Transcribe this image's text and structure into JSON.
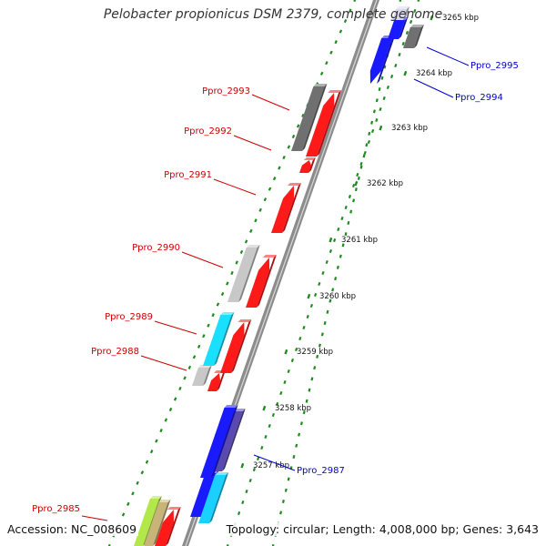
{
  "title": "Pelobacter propionicus DSM 2379, complete genome",
  "footer": {
    "accession": "Accession: NC_008609",
    "summary": "Topology: circular; Length: 4,008,000 bp; Genes: 3,643"
  },
  "colors": {
    "backbone": "#8c8c8c",
    "tick_dots": "#1f8a1f",
    "label_forward": "#cc0000",
    "label_reverse": "#0000cc"
  },
  "scale_ticks": [
    {
      "label": "3257 kbp",
      "kbp": 3257
    },
    {
      "label": "3258 kbp",
      "kbp": 3258
    },
    {
      "label": "3259 kbp",
      "kbp": 3259
    },
    {
      "label": "3260 kbp",
      "kbp": 3260
    },
    {
      "label": "3261 kbp",
      "kbp": 3261
    },
    {
      "label": "3262 kbp",
      "kbp": 3262
    },
    {
      "label": "3263 kbp",
      "kbp": 3263
    },
    {
      "label": "3264 kbp",
      "kbp": 3264
    },
    {
      "label": "3265 kbp",
      "kbp": 3265
    }
  ],
  "gene_labels": [
    {
      "name": "Ppro_2985",
      "strand": "forward"
    },
    {
      "name": "Ppro_2987",
      "strand": "reverse"
    },
    {
      "name": "Ppro_2988",
      "strand": "forward"
    },
    {
      "name": "Ppro_2989",
      "strand": "forward"
    },
    {
      "name": "Ppro_2990",
      "strand": "forward"
    },
    {
      "name": "Ppro_2991",
      "strand": "forward"
    },
    {
      "name": "Ppro_2992",
      "strand": "forward"
    },
    {
      "name": "Ppro_2993",
      "strand": "forward"
    },
    {
      "name": "Ppro_2994",
      "strand": "reverse"
    },
    {
      "name": "Ppro_2995",
      "strand": "reverse"
    }
  ],
  "feature_tracks": [
    {
      "kind": "cog-function",
      "color": "#b3e84a"
    },
    {
      "kind": "cog-function",
      "color": "#c8b478"
    },
    {
      "kind": "cds-forward",
      "color": "#ff1a1a"
    },
    {
      "kind": "cog-function",
      "color": "#1a1aff"
    },
    {
      "kind": "cog-function",
      "color": "#5a4ab0"
    },
    {
      "kind": "cog-function",
      "color": "#1ad0ff"
    },
    {
      "kind": "cog-function",
      "color": "#1a1aff"
    },
    {
      "kind": "cog-function",
      "color": "#c8c8c8"
    },
    {
      "kind": "cds-forward",
      "color": "#ff1a1a"
    },
    {
      "kind": "cog-function",
      "color": "#1ae0ff"
    },
    {
      "kind": "cds-forward",
      "color": "#ff1a1a"
    },
    {
      "kind": "cog-function",
      "color": "#c8c8c8"
    },
    {
      "kind": "cds-forward",
      "color": "#ff1a1a"
    },
    {
      "kind": "cds-forward",
      "color": "#ff1a1a"
    },
    {
      "kind": "cds-forward",
      "color": "#ff1a1a"
    },
    {
      "kind": "cog-function",
      "color": "#707070"
    },
    {
      "kind": "cds-forward",
      "color": "#ff1a1a"
    },
    {
      "kind": "cds-reverse",
      "color": "#1a1aff"
    },
    {
      "kind": "cog-function",
      "color": "#1a1aff"
    },
    {
      "kind": "cog-function",
      "color": "#707070"
    },
    {
      "kind": "cog-function",
      "color": "#d8d8f0"
    }
  ]
}
